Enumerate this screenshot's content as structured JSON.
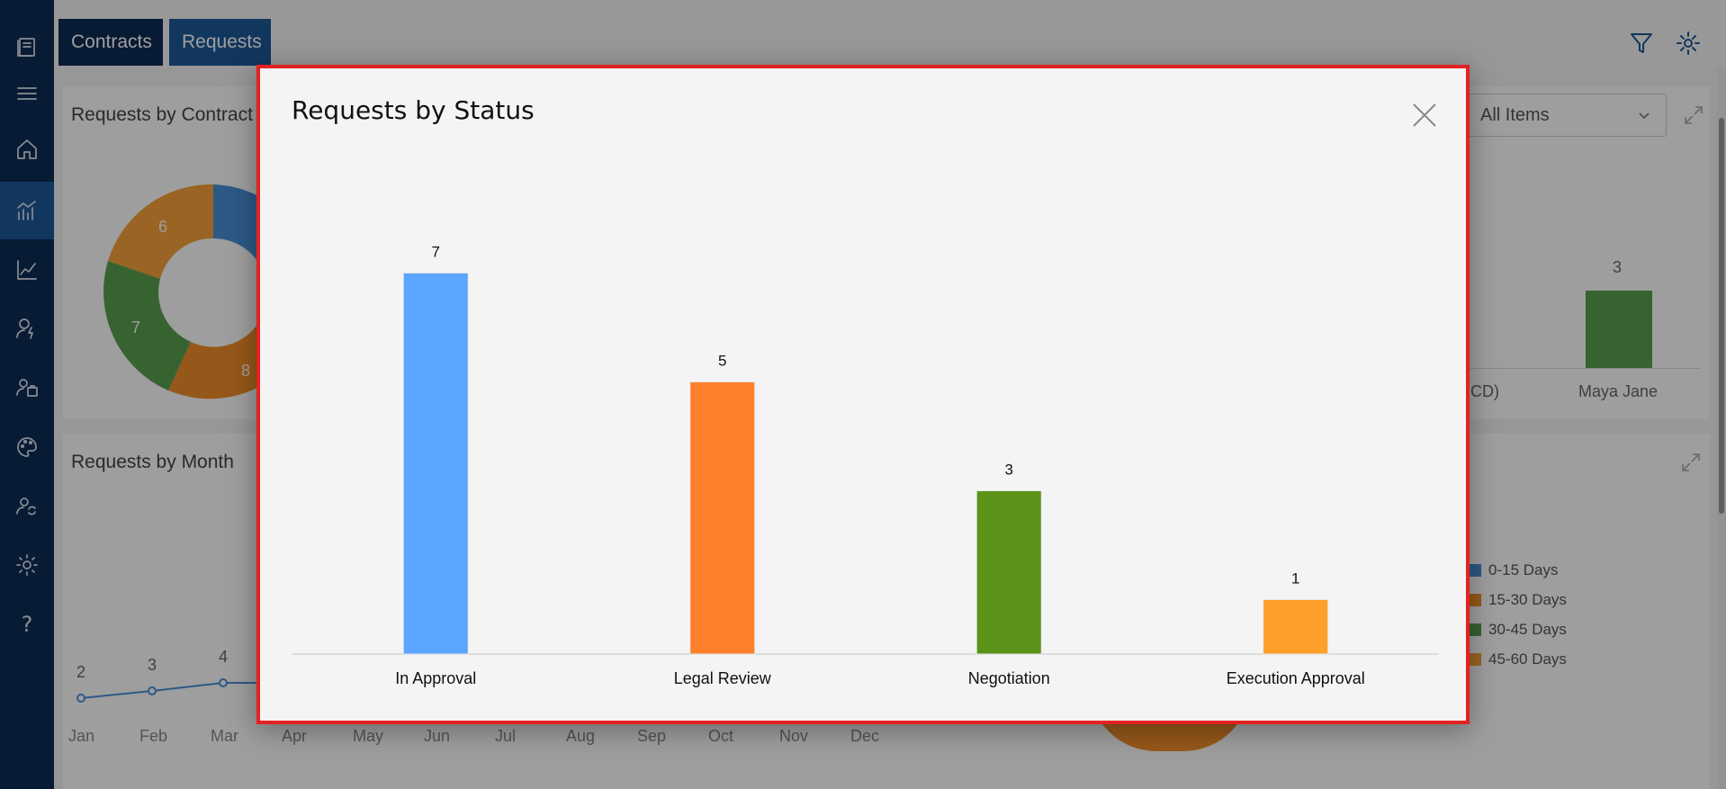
{
  "app": {
    "tabs": [
      {
        "label": "Contracts"
      },
      {
        "label": "Requests"
      }
    ],
    "sidebar_icons": [
      "contracts-logo-icon",
      "menu-icon",
      "home-icon",
      "analytics-icon",
      "trend-icon",
      "user-flash-icon",
      "team-icon",
      "palette-icon",
      "user-sync-icon",
      "gear-icon",
      "help-icon"
    ],
    "help_label": "?"
  },
  "background": {
    "card1_title": "Requests by Contract",
    "card2_title": "Requests by Month",
    "dropdown_value": "All Items",
    "donut_labels": [
      "6",
      "7",
      "8"
    ],
    "bar_value": "3",
    "bar_label_partial": "CD)",
    "bar_label": "Maya Jane",
    "month_values": [
      "2",
      "3",
      "4"
    ],
    "months": [
      "Jan",
      "Feb",
      "Mar",
      "Apr",
      "May",
      "Jun",
      "Jul",
      "Aug",
      "Sep",
      "Oct",
      "Nov",
      "Dec"
    ],
    "legend": [
      {
        "label": "0-15 Days",
        "color": "#4a90d9"
      },
      {
        "label": "15-30 Days",
        "color": "#f28e2b"
      },
      {
        "label": "30-45 Days",
        "color": "#59a14f"
      },
      {
        "label": "45-60 Days",
        "color": "#f7a23a"
      }
    ]
  },
  "modal": {
    "title": "Requests by Status"
  },
  "chart_data": {
    "type": "bar",
    "title": "Requests by Status",
    "categories": [
      "In Approval",
      "Legal Review",
      "Negotiation",
      "Execution Approval"
    ],
    "values": [
      7,
      5,
      3,
      1
    ],
    "colors": [
      "#59a5ff",
      "#fd7f2c",
      "#5b9318",
      "#fe9f29"
    ],
    "ylim": [
      0,
      7.85
    ],
    "xlabel": "",
    "ylabel": "",
    "grid": false,
    "data_labels": true
  }
}
